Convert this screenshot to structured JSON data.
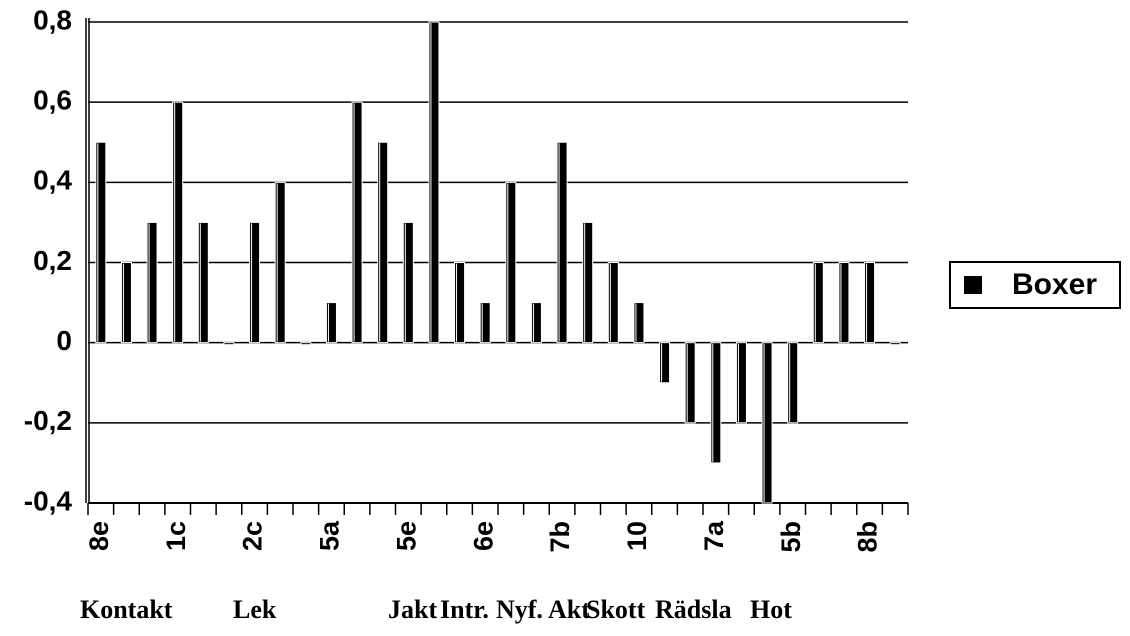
{
  "chart_data": {
    "type": "bar",
    "categories": [
      "8e",
      null,
      null,
      "1c",
      null,
      null,
      "2c",
      null,
      null,
      "5a",
      null,
      null,
      "5e",
      null,
      null,
      "6e",
      null,
      null,
      "7b",
      null,
      null,
      "10",
      null,
      null,
      "7a",
      null,
      null,
      "5b",
      null,
      null,
      "8b",
      null
    ],
    "series": [
      {
        "name": "Boxer",
        "color": "#000000",
        "values": [
          0.5,
          0.2,
          0.3,
          0.6,
          0.3,
          0,
          0.3,
          0.4,
          0,
          0.1,
          0.6,
          0.5,
          0.3,
          0.8,
          0.2,
          0.1,
          0.4,
          0.1,
          0.5,
          0.3,
          0.2,
          0.1,
          -0.1,
          -0.2,
          -0.3,
          -0.2,
          -0.4,
          -0.2,
          0.2,
          0.2,
          0.2,
          0
        ]
      }
    ],
    "ylim": [
      -0.4,
      0.8
    ],
    "yticks": [
      {
        "value": -0.4,
        "label": "-0,4"
      },
      {
        "value": -0.2,
        "label": "-0,2"
      },
      0,
      {
        "value": 0.2,
        "label": "0,2"
      },
      {
        "value": 0.4,
        "label": "0,4"
      },
      {
        "value": 0.6,
        "label": "0,6"
      },
      {
        "value": 0.8,
        "label": "0,8"
      }
    ],
    "grid": true,
    "legend": "right",
    "group_labels": [
      "Kontakt",
      "Lek",
      "Jakt",
      "Intr.",
      "Nyf.",
      "Akt",
      "Skott",
      "Rädsla",
      "Hot"
    ]
  }
}
